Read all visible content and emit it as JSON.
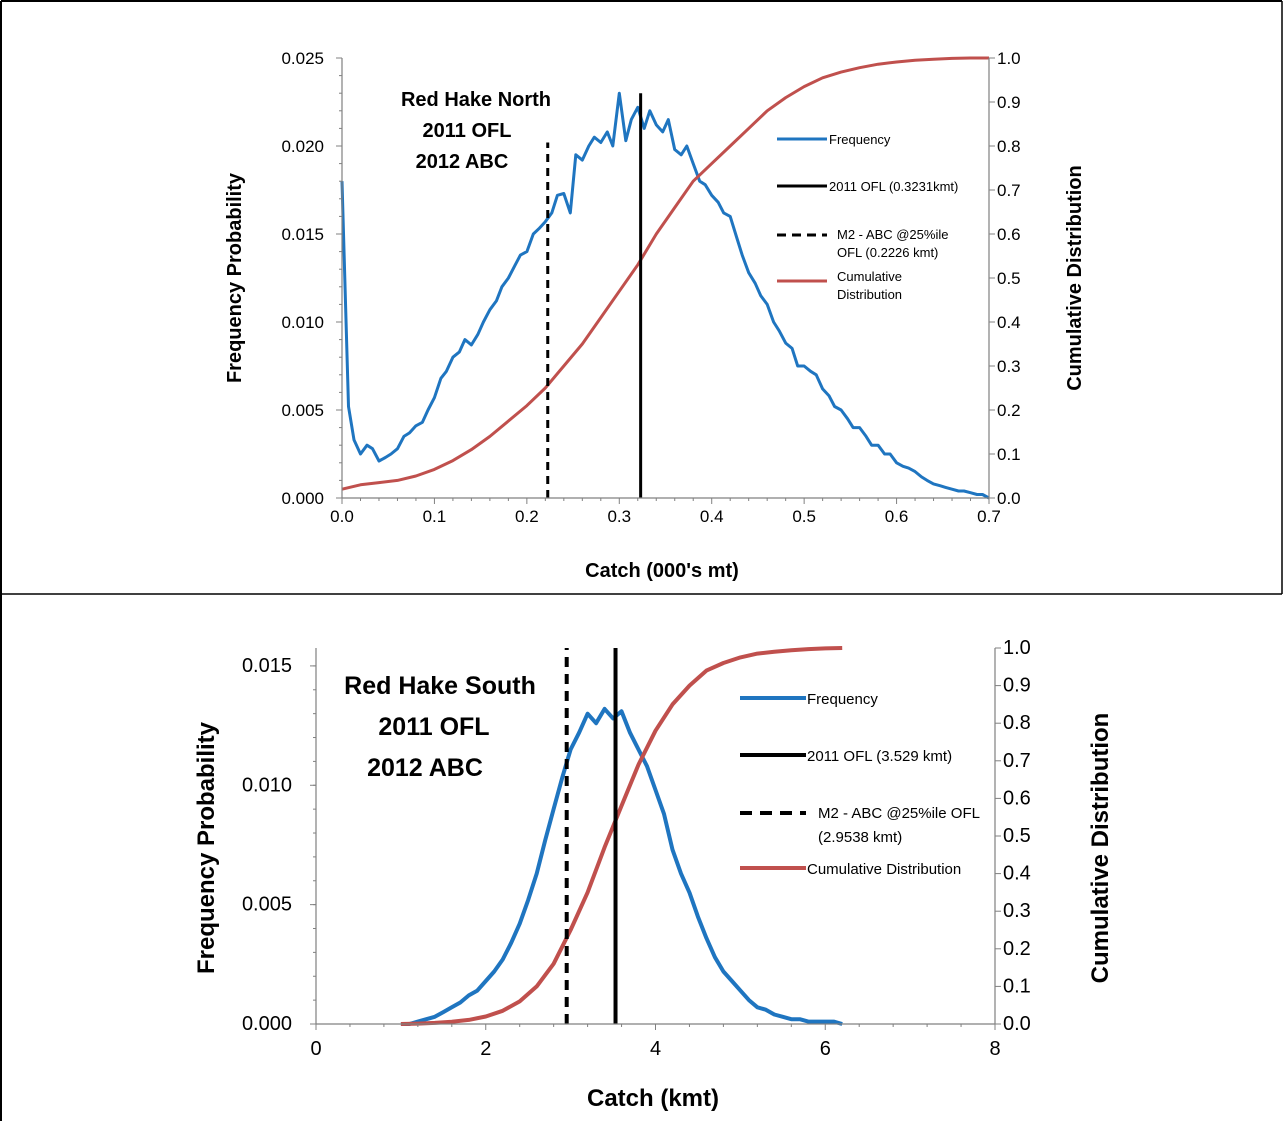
{
  "chart_data": [
    {
      "type": "line",
      "annotation": [
        "Red Hake North",
        "2011  OFL",
        "2012 ABC"
      ],
      "xlabel": "Catch (000's mt)",
      "ylabel": "Frequency Probability",
      "y2label": "Cumulative Distribution",
      "xlim": [
        0,
        0.7
      ],
      "ylim": [
        0,
        0.025
      ],
      "y2lim": [
        0,
        1.0
      ],
      "xticks": [
        "0.0",
        "0.1",
        "0.2",
        "0.3",
        "0.4",
        "0.5",
        "0.6",
        "0.7"
      ],
      "yticks": [
        "0.000",
        "0.005",
        "0.010",
        "0.015",
        "0.020",
        "0.025"
      ],
      "y2ticks": [
        "0.0",
        "0.1",
        "0.2",
        "0.3",
        "0.4",
        "0.5",
        "0.6",
        "0.7",
        "0.8",
        "0.9",
        "1.0"
      ],
      "legend_placement": "right-inside",
      "legend": [
        "Frequency",
        "2011 OFL (0.3231kmt)",
        "M2 - ABC @25%ile OFL (0.2226 kmt)",
        "Cumulative Distribution"
      ],
      "ofl": {
        "x": 0.3231,
        "top": 0.023
      },
      "abc": {
        "x": 0.2226,
        "top": 0.0202
      },
      "series": [
        {
          "name": "Frequency",
          "axis": "left",
          "color": "#1f75c0",
          "x": [
            0.0,
            0.007,
            0.013,
            0.02,
            0.027,
            0.033,
            0.04,
            0.047,
            0.053,
            0.06,
            0.067,
            0.073,
            0.08,
            0.087,
            0.093,
            0.1,
            0.107,
            0.113,
            0.12,
            0.127,
            0.133,
            0.14,
            0.147,
            0.153,
            0.16,
            0.167,
            0.173,
            0.18,
            0.187,
            0.193,
            0.2,
            0.207,
            0.213,
            0.22,
            0.227,
            0.233,
            0.24,
            0.247,
            0.253,
            0.26,
            0.267,
            0.273,
            0.28,
            0.287,
            0.293,
            0.3,
            0.307,
            0.313,
            0.32,
            0.327,
            0.333,
            0.34,
            0.347,
            0.353,
            0.36,
            0.367,
            0.373,
            0.38,
            0.387,
            0.393,
            0.4,
            0.407,
            0.413,
            0.42,
            0.427,
            0.433,
            0.44,
            0.447,
            0.453,
            0.46,
            0.467,
            0.473,
            0.48,
            0.487,
            0.493,
            0.5,
            0.507,
            0.513,
            0.52,
            0.527,
            0.533,
            0.54,
            0.547,
            0.553,
            0.56,
            0.567,
            0.573,
            0.58,
            0.587,
            0.593,
            0.6,
            0.607,
            0.613,
            0.62,
            0.627,
            0.633,
            0.64,
            0.647,
            0.653,
            0.66,
            0.667,
            0.673,
            0.68,
            0.687,
            0.693,
            0.7
          ],
          "values": [
            0.018,
            0.0052,
            0.0033,
            0.0025,
            0.003,
            0.0028,
            0.0021,
            0.0023,
            0.0025,
            0.0028,
            0.0035,
            0.0037,
            0.0041,
            0.0043,
            0.005,
            0.0057,
            0.0068,
            0.0072,
            0.008,
            0.0083,
            0.009,
            0.0087,
            0.0093,
            0.01,
            0.0107,
            0.0112,
            0.012,
            0.0125,
            0.0132,
            0.0138,
            0.014,
            0.015,
            0.0153,
            0.0157,
            0.0162,
            0.0172,
            0.0173,
            0.0162,
            0.0195,
            0.0192,
            0.02,
            0.0205,
            0.0202,
            0.0208,
            0.02,
            0.023,
            0.0203,
            0.0215,
            0.0222,
            0.021,
            0.022,
            0.0212,
            0.0208,
            0.0215,
            0.0198,
            0.0195,
            0.02,
            0.019,
            0.018,
            0.0178,
            0.0172,
            0.0168,
            0.0162,
            0.016,
            0.0148,
            0.0138,
            0.0128,
            0.0122,
            0.0115,
            0.011,
            0.01,
            0.0095,
            0.0088,
            0.0085,
            0.0075,
            0.0075,
            0.0072,
            0.007,
            0.0062,
            0.0058,
            0.0052,
            0.005,
            0.0045,
            0.004,
            0.004,
            0.0035,
            0.003,
            0.003,
            0.0025,
            0.0025,
            0.002,
            0.0018,
            0.0017,
            0.0015,
            0.0012,
            0.001,
            0.0008,
            0.0007,
            0.0006,
            0.0005,
            0.0004,
            0.0004,
            0.0003,
            0.0002,
            0.0002,
            0.0
          ]
        },
        {
          "name": "Cumulative Distribution",
          "axis": "right",
          "color": "#c0504d",
          "x": [
            0.0,
            0.02,
            0.04,
            0.06,
            0.08,
            0.1,
            0.12,
            0.14,
            0.16,
            0.18,
            0.2,
            0.22,
            0.24,
            0.26,
            0.28,
            0.3,
            0.32,
            0.34,
            0.36,
            0.38,
            0.4,
            0.42,
            0.44,
            0.46,
            0.48,
            0.5,
            0.52,
            0.54,
            0.56,
            0.58,
            0.6,
            0.62,
            0.64,
            0.66,
            0.68,
            0.7
          ],
          "values": [
            0.02,
            0.03,
            0.035,
            0.04,
            0.05,
            0.065,
            0.085,
            0.11,
            0.14,
            0.175,
            0.21,
            0.25,
            0.3,
            0.35,
            0.41,
            0.47,
            0.53,
            0.6,
            0.66,
            0.72,
            0.76,
            0.8,
            0.84,
            0.88,
            0.91,
            0.935,
            0.955,
            0.968,
            0.978,
            0.986,
            0.991,
            0.995,
            0.997,
            0.999,
            1.0,
            1.0
          ]
        }
      ]
    },
    {
      "type": "line",
      "annotation": [
        "Red Hake South",
        "2011  OFL",
        "2012 ABC"
      ],
      "xlabel": "Catch (kmt)",
      "ylabel": "Frequency Probability",
      "y2label": "Cumulative Distribution",
      "xlim": [
        0,
        8
      ],
      "ylim": [
        0,
        0.01575
      ],
      "y2lim": [
        0,
        1.0
      ],
      "xticks": [
        "0",
        "2",
        "4",
        "6",
        "8"
      ],
      "yticks": [
        "0.000",
        "0.005",
        "0.010",
        "0.015"
      ],
      "y2ticks": [
        "0.0",
        "0.1",
        "0.2",
        "0.3",
        "0.4",
        "0.5",
        "0.6",
        "0.7",
        "0.8",
        "0.9",
        "1.0"
      ],
      "legend_placement": "right-inside",
      "legend": [
        "Frequency",
        "2011 OFL (3.529 kmt)",
        "M2 - ABC @25%ile OFL (2.9538 kmt)",
        "Cumulative Distribution"
      ],
      "ofl": {
        "x": 3.529,
        "top": 0.01575
      },
      "abc": {
        "x": 2.9538,
        "top": 0.01575
      },
      "series": [
        {
          "name": "Frequency",
          "axis": "left",
          "color": "#1f75c0",
          "x": [
            1.0,
            1.1,
            1.2,
            1.3,
            1.4,
            1.5,
            1.6,
            1.7,
            1.8,
            1.9,
            2.0,
            2.1,
            2.2,
            2.3,
            2.4,
            2.5,
            2.6,
            2.7,
            2.8,
            2.9,
            3.0,
            3.1,
            3.2,
            3.3,
            3.4,
            3.5,
            3.6,
            3.7,
            3.8,
            3.9,
            4.0,
            4.1,
            4.2,
            4.3,
            4.4,
            4.5,
            4.6,
            4.7,
            4.8,
            4.9,
            5.0,
            5.1,
            5.2,
            5.3,
            5.4,
            5.5,
            5.6,
            5.7,
            5.8,
            5.9,
            6.0,
            6.1,
            6.2
          ],
          "values": [
            0.0,
            0.0,
            0.0001,
            0.0002,
            0.0003,
            0.0005,
            0.0007,
            0.0009,
            0.0012,
            0.0014,
            0.0018,
            0.0022,
            0.0027,
            0.0034,
            0.0042,
            0.0052,
            0.0063,
            0.0077,
            0.009,
            0.0103,
            0.0115,
            0.0122,
            0.013,
            0.0126,
            0.0132,
            0.0128,
            0.0131,
            0.0122,
            0.0115,
            0.0108,
            0.0098,
            0.0088,
            0.0073,
            0.0063,
            0.0055,
            0.0045,
            0.0036,
            0.0028,
            0.0022,
            0.0018,
            0.0014,
            0.001,
            0.0007,
            0.0006,
            0.0004,
            0.0003,
            0.0002,
            0.0002,
            0.0001,
            0.0001,
            0.0001,
            0.0001,
            0.0
          ]
        },
        {
          "name": "Cumulative Distribution",
          "axis": "right",
          "color": "#c0504d",
          "x": [
            1.0,
            1.2,
            1.4,
            1.6,
            1.8,
            2.0,
            2.2,
            2.4,
            2.6,
            2.8,
            3.0,
            3.2,
            3.4,
            3.6,
            3.8,
            4.0,
            4.2,
            4.4,
            4.6,
            4.8,
            5.0,
            5.2,
            5.4,
            5.6,
            5.8,
            6.0,
            6.2
          ],
          "values": [
            0.0,
            0.001,
            0.003,
            0.006,
            0.011,
            0.02,
            0.035,
            0.06,
            0.1,
            0.16,
            0.25,
            0.35,
            0.47,
            0.58,
            0.69,
            0.78,
            0.85,
            0.9,
            0.94,
            0.96,
            0.975,
            0.985,
            0.99,
            0.994,
            0.997,
            0.999,
            1.0
          ]
        }
      ]
    }
  ]
}
